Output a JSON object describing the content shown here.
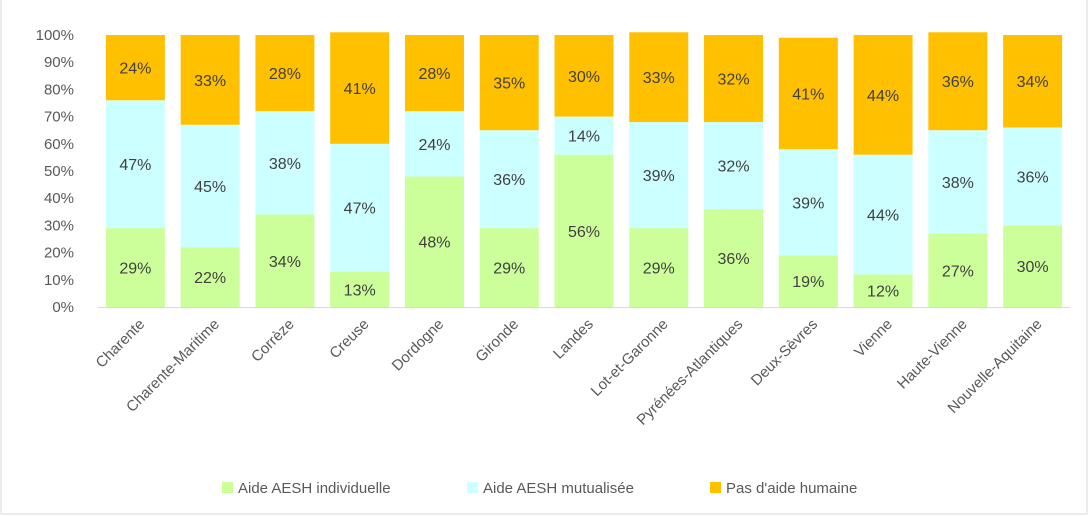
{
  "chart_data": {
    "type": "bar",
    "stacked": true,
    "title": "",
    "categories": [
      "Charente",
      "Charente-Maritime",
      "Corrèze",
      "Creuse",
      "Dordogne",
      "Gironde",
      "Landes",
      "Lot-et-Garonne",
      "Pyrénées-Atlantiques",
      "Deux-Sèvres",
      "Vienne",
      "Haute-Vienne",
      "Nouvelle-Aquitaine"
    ],
    "series": [
      {
        "name": "Aide AESH individuelle",
        "color": "#ccff99",
        "values": [
          29,
          22,
          34,
          13,
          48,
          29,
          56,
          29,
          36,
          19,
          12,
          27,
          30
        ]
      },
      {
        "name": "Aide AESH mutualisée",
        "color": "#ccffff",
        "values": [
          47,
          45,
          38,
          47,
          24,
          36,
          14,
          39,
          32,
          39,
          44,
          38,
          36
        ]
      },
      {
        "name": "Pas d'aide humaine",
        "color": "#ffc000",
        "values": [
          24,
          33,
          28,
          41,
          28,
          35,
          30,
          33,
          32,
          41,
          44,
          36,
          34
        ]
      }
    ],
    "y_ticks": [
      "0%",
      "10%",
      "20%",
      "30%",
      "40%",
      "50%",
      "60%",
      "70%",
      "80%",
      "90%",
      "100%"
    ],
    "ylim": [
      0,
      100
    ],
    "grid": false,
    "legend_position": "bottom",
    "value_suffix": "%"
  }
}
